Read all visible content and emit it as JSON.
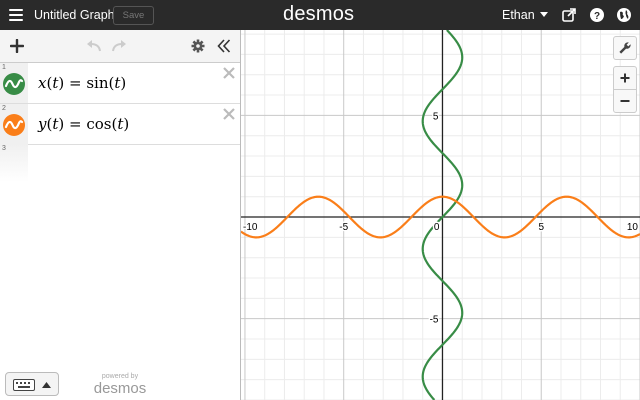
{
  "topbar": {
    "title": "Untitled Graph",
    "save_label": "Save",
    "logo": "desmos",
    "user": "Ethan"
  },
  "icons": {
    "menu": "hamburger-icon",
    "share": "share-icon",
    "help": "help-icon",
    "language": "globe-icon",
    "add": "plus-icon",
    "undo": "undo-icon",
    "redo": "redo-icon",
    "settings": "gear-icon",
    "collapse": "double-chevron-left-icon",
    "graph_settings": "wrench-icon",
    "zoom_in": "plus-icon",
    "zoom_out": "minus-icon",
    "keyboard": "keyboard-icon"
  },
  "expressions": [
    {
      "index": "1",
      "lhs": "x",
      "var": "t",
      "fn": "sin",
      "color": "#388c46"
    },
    {
      "index": "2",
      "lhs": "y",
      "var": "t",
      "fn": "cos",
      "color": "#fa7e19"
    }
  ],
  "empty_index": "3",
  "footer": {
    "powered_by": "powered by",
    "brand": "desmos"
  },
  "graph": {
    "x_ticks": [
      "-10",
      "-5",
      "0",
      "5",
      "10"
    ],
    "y_ticks": [
      "5",
      "-5"
    ],
    "x_range": [
      -10.2,
      10
    ],
    "y_range": [
      -9,
      9.2
    ],
    "grid_step": 1,
    "major_step": 5,
    "curves": [
      {
        "expr": "x = sin(y)",
        "color": "#388c46"
      },
      {
        "expr": "y = cos(x)",
        "color": "#fa7e19"
      }
    ]
  }
}
